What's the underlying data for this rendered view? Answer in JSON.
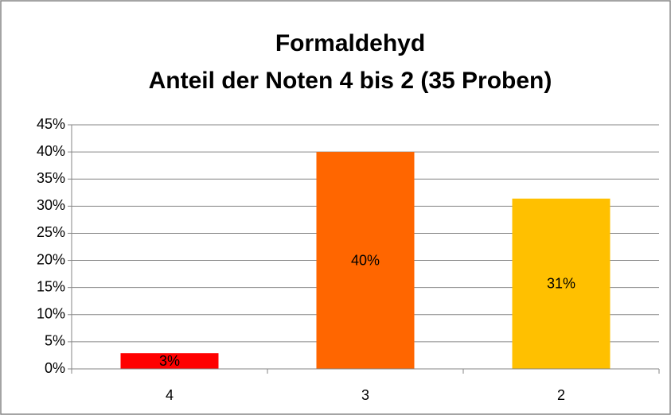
{
  "chart_data": {
    "type": "bar",
    "title": "Formaldehyd",
    "subtitle": "Anteil der Noten 4 bis 2 (35 Proben)",
    "categories": [
      "4",
      "3",
      "2"
    ],
    "values": [
      2.9,
      40,
      31.4
    ],
    "value_labels": [
      "3%",
      "40%",
      "31%"
    ],
    "colors": [
      "#ff0000",
      "#ff6600",
      "#ffc000"
    ],
    "ylim": [
      0,
      45
    ],
    "yticks": [
      {
        "value": 0,
        "label": "0%"
      },
      {
        "value": 5,
        "label": "5%"
      },
      {
        "value": 10,
        "label": "10%"
      },
      {
        "value": 15,
        "label": "15%"
      },
      {
        "value": 20,
        "label": "20%"
      },
      {
        "value": 25,
        "label": "25%"
      },
      {
        "value": 30,
        "label": "30%"
      },
      {
        "value": 35,
        "label": "35%"
      },
      {
        "value": 40,
        "label": "40%"
      },
      {
        "value": 45,
        "label": "45%"
      }
    ],
    "grid": true
  }
}
